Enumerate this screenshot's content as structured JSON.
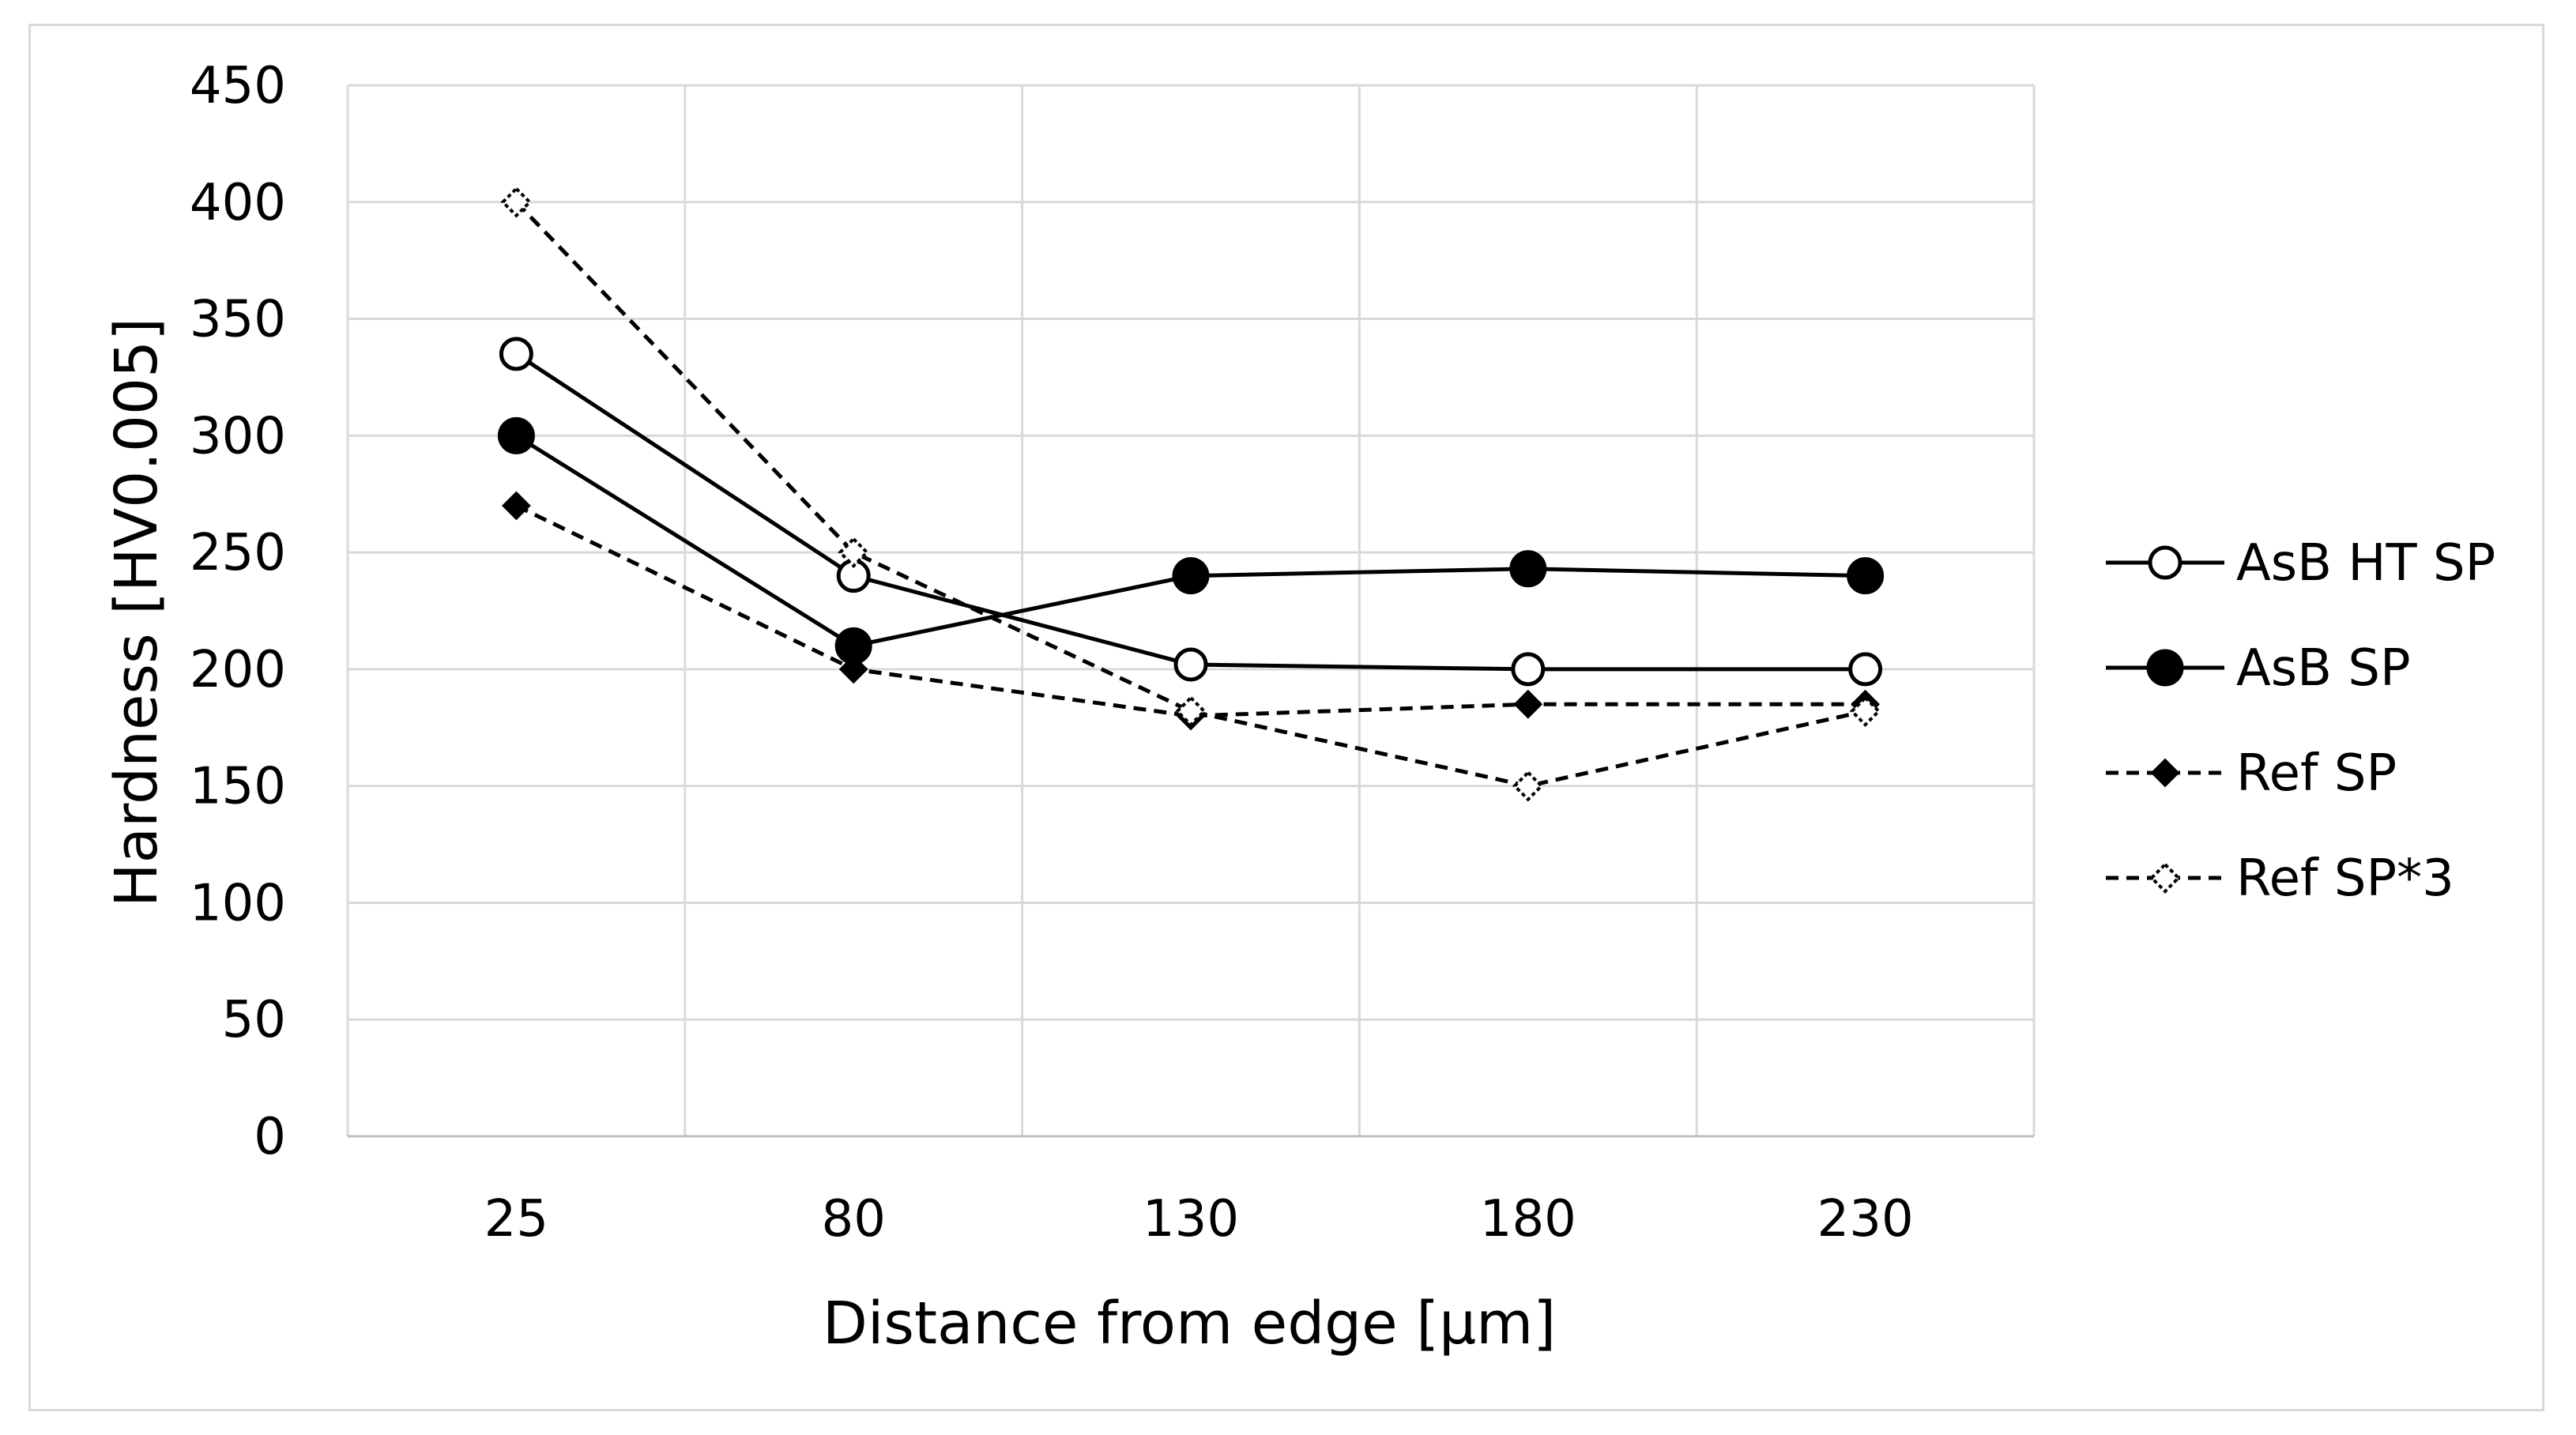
{
  "chart_data": {
    "type": "line",
    "title": "",
    "xlabel": "Distance from edge [µm]",
    "ylabel": "Hardness [HV0.005]",
    "categories": [
      "25",
      "80",
      "130",
      "180",
      "230"
    ],
    "ylim": [
      0,
      450
    ],
    "yticks": [
      0,
      50,
      100,
      150,
      200,
      250,
      300,
      350,
      400,
      450
    ],
    "grid": true,
    "legend_position": "right",
    "series": [
      {
        "name": "AsB HT SP",
        "values": [
          335,
          240,
          202,
          200,
          200
        ],
        "line_style": "solid",
        "marker": "circle-open",
        "color": "#000000"
      },
      {
        "name": "AsB SP",
        "values": [
          300,
          210,
          240,
          243,
          240
        ],
        "line_style": "solid",
        "marker": "circle-filled",
        "color": "#000000"
      },
      {
        "name": "Ref SP",
        "values": [
          270,
          200,
          180,
          185,
          185
        ],
        "line_style": "dashed",
        "marker": "diamond-filled",
        "color": "#000000"
      },
      {
        "name": "Ref SP*3",
        "values": [
          400,
          250,
          182,
          150,
          182
        ],
        "line_style": "dashed",
        "marker": "diamond-open",
        "color": "#000000"
      }
    ]
  }
}
